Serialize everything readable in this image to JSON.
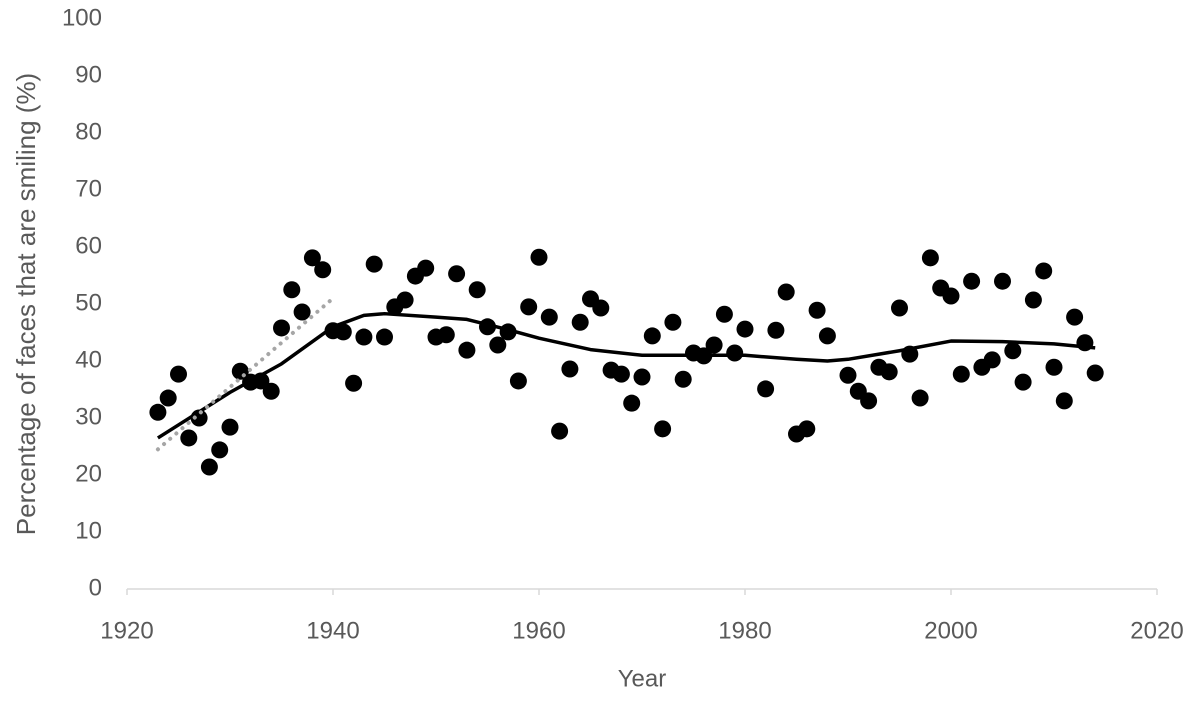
{
  "chart_data": {
    "type": "scatter",
    "xlabel": "Year",
    "ylabel": "Percentage of faces that are smiling (%)",
    "xlim": [
      1920,
      2020
    ],
    "xticks": [
      1920,
      1940,
      1960,
      1980,
      2000,
      2020
    ],
    "ylim": [
      0,
      100
    ],
    "yticks": [
      0,
      10,
      20,
      30,
      40,
      50,
      60,
      70,
      80,
      90,
      100
    ],
    "grid": false,
    "series": [
      {
        "type": "scatter",
        "color": "#000000",
        "x": [
          1923,
          1924,
          1925,
          1926,
          1927,
          1928,
          1929,
          1930,
          1931,
          1932,
          1933,
          1934,
          1935,
          1936,
          1937,
          1938,
          1939,
          1940,
          1941,
          1942,
          1943,
          1944,
          1945,
          1946,
          1947,
          1948,
          1949,
          1950,
          1951,
          1952,
          1953,
          1954,
          1955,
          1956,
          1957,
          1958,
          1959,
          1960,
          1961,
          1962,
          1963,
          1964,
          1965,
          1966,
          1967,
          1968,
          1969,
          1970,
          1971,
          1972,
          1973,
          1974,
          1975,
          1976,
          1977,
          1978,
          1979,
          1980,
          1982,
          1983,
          1984,
          1985,
          1986,
          1987,
          1988,
          1990,
          1991,
          1992,
          1993,
          1994,
          1995,
          1996,
          1997,
          1998,
          1999,
          2000,
          2001,
          2002,
          2003,
          2004,
          2005,
          2006,
          2007,
          2008,
          2009,
          2010,
          2011,
          2012,
          2013,
          2014
        ],
        "values": [
          31,
          33.5,
          37.7,
          26.5,
          30,
          21.4,
          24.4,
          28.4,
          38.2,
          36.3,
          36.5,
          34.7,
          45.8,
          52.5,
          48.6,
          58.1,
          56,
          45.3,
          45.1,
          36.1,
          44.2,
          57,
          44.2,
          49.5,
          50.7,
          54.9,
          56.3,
          44.2,
          44.6,
          55.3,
          41.9,
          52.5,
          46,
          42.8,
          45.1,
          36.5,
          49.5,
          58.2,
          47.7,
          27.7,
          38.6,
          46.8,
          50.9,
          49.3,
          38.4,
          37.7,
          32.6,
          37.2,
          44.4,
          28.1,
          46.8,
          36.8,
          41.4,
          40.9,
          42.8,
          48.2,
          41.4,
          45.6,
          35.1,
          45.4,
          52.1,
          27.2,
          28.1,
          48.9,
          44.4,
          37.5,
          34.7,
          33,
          38.9,
          38.1,
          49.3,
          41.2,
          33.5,
          58.1,
          52.8,
          51.4,
          37.7,
          54,
          38.9,
          40.2,
          54,
          41.8,
          36.3,
          50.7,
          55.8,
          38.9,
          33,
          47.7,
          43.2,
          37.9
        ]
      },
      {
        "type": "line",
        "color": "#000000",
        "dash": "solid",
        "x": [
          1923,
          1930,
          1935,
          1940,
          1943,
          1945,
          1950,
          1953,
          1957,
          1960,
          1965,
          1970,
          1975,
          1980,
          1985,
          1988,
          1990,
          1995,
          2000,
          2005,
          2010,
          2014
        ],
        "values": [
          26.5,
          34.5,
          39.5,
          46,
          48,
          48.3,
          47.7,
          47.3,
          45.5,
          44,
          42,
          41,
          41,
          41,
          40.3,
          40,
          40.3,
          41.8,
          43.5,
          43.4,
          43,
          42.3
        ]
      },
      {
        "type": "line",
        "color": "#a6a6a6",
        "dash": "dotted",
        "x": [
          1923,
          1940
        ],
        "values": [
          24.5,
          51
        ]
      }
    ]
  }
}
